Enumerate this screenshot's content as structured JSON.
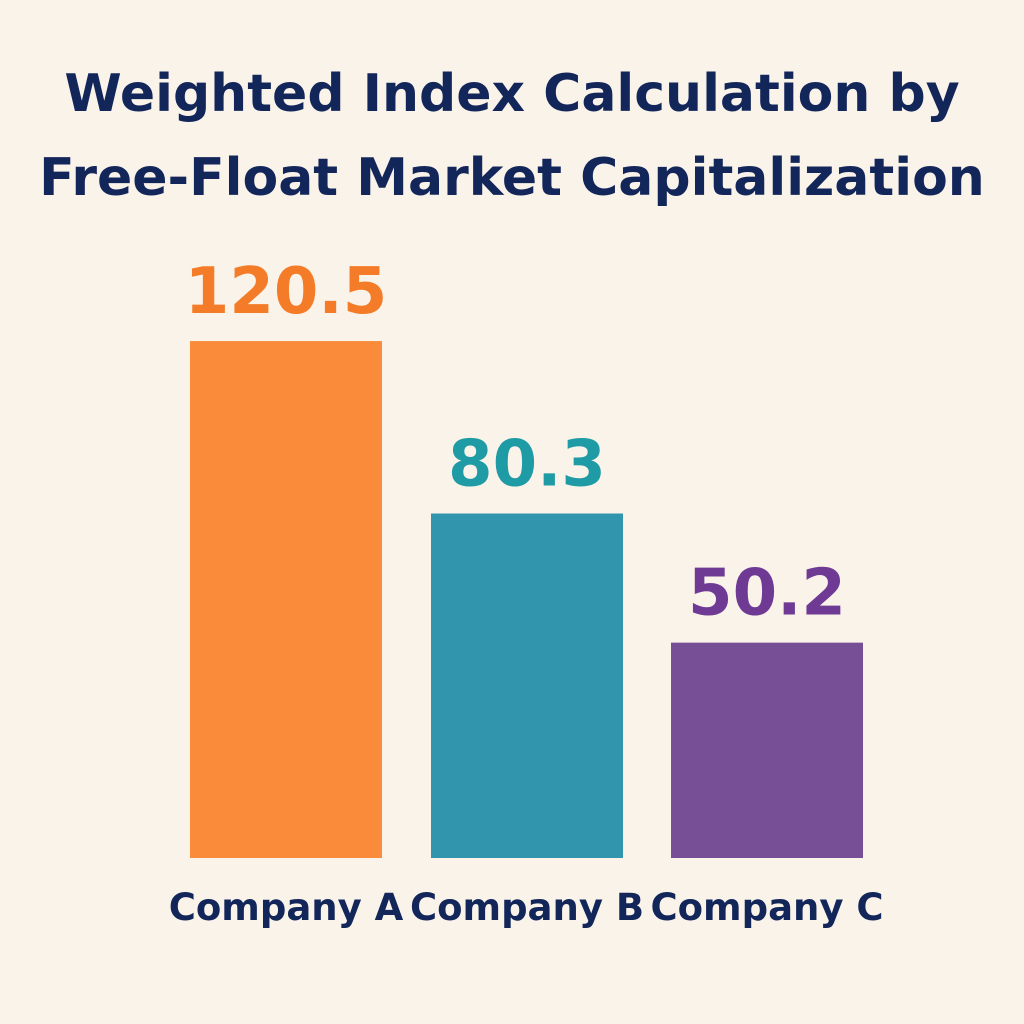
{
  "chart_data": {
    "type": "bar",
    "title_lines": [
      "Weighted Index Calculation by",
      "Free-Float Market Capitalization"
    ],
    "categories": [
      "Company A",
      "Company B",
      "Company C"
    ],
    "values": [
      120.5,
      80.3,
      50.2
    ],
    "value_labels": [
      "120.5",
      "80.3",
      "50.2"
    ],
    "colors": [
      "#f98b3a",
      "#3195ae",
      "#774f96"
    ],
    "label_colors": [
      "#f47c28",
      "#1f9ba5",
      "#6f3a94"
    ],
    "xlabel": "",
    "ylabel": "",
    "grid": false,
    "legend": "none"
  }
}
